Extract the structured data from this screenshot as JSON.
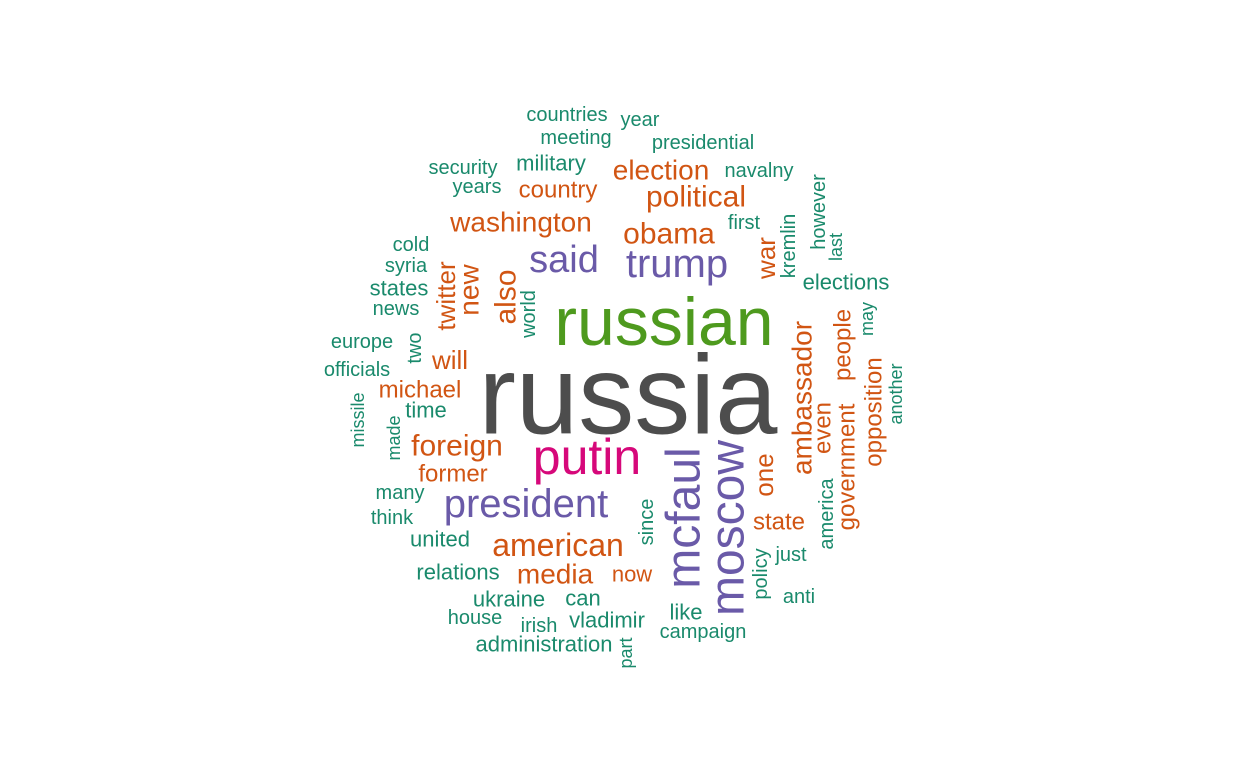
{
  "colors": {
    "gray": "#4d4d4d",
    "green": "#4e9a1e",
    "magenta": "#d6087a",
    "purple": "#6a5aa8",
    "orange": "#d15513",
    "teal": "#1a8a6c"
  },
  "words": [
    {
      "text": "russia",
      "color": "gray"
    },
    {
      "text": "russian",
      "color": "green"
    },
    {
      "text": "putin",
      "color": "magenta"
    },
    {
      "text": "president",
      "color": "purple"
    },
    {
      "text": "trump",
      "color": "purple"
    },
    {
      "text": "said",
      "color": "purple"
    },
    {
      "text": "mcfaul",
      "color": "purple"
    },
    {
      "text": "moscow",
      "color": "purple"
    },
    {
      "text": "american",
      "color": "orange"
    },
    {
      "text": "washington",
      "color": "orange"
    },
    {
      "text": "obama",
      "color": "orange"
    },
    {
      "text": "political",
      "color": "orange"
    },
    {
      "text": "election",
      "color": "orange"
    },
    {
      "text": "foreign",
      "color": "orange"
    },
    {
      "text": "media",
      "color": "orange"
    },
    {
      "text": "country",
      "color": "orange"
    },
    {
      "text": "will",
      "color": "orange"
    },
    {
      "text": "michael",
      "color": "orange"
    },
    {
      "text": "former",
      "color": "orange"
    },
    {
      "text": "state",
      "color": "orange"
    },
    {
      "text": "now",
      "color": "orange"
    },
    {
      "text": "new",
      "color": "orange"
    },
    {
      "text": "also",
      "color": "orange"
    },
    {
      "text": "twitter",
      "color": "orange"
    },
    {
      "text": "war",
      "color": "orange"
    },
    {
      "text": "ambassador",
      "color": "orange"
    },
    {
      "text": "one",
      "color": "orange"
    },
    {
      "text": "even",
      "color": "orange"
    },
    {
      "text": "people",
      "color": "orange"
    },
    {
      "text": "government",
      "color": "orange"
    },
    {
      "text": "opposition",
      "color": "orange"
    },
    {
      "text": "countries",
      "color": "teal"
    },
    {
      "text": "year",
      "color": "teal"
    },
    {
      "text": "meeting",
      "color": "teal"
    },
    {
      "text": "presidential",
      "color": "teal"
    },
    {
      "text": "security",
      "color": "teal"
    },
    {
      "text": "military",
      "color": "teal"
    },
    {
      "text": "navalny",
      "color": "teal"
    },
    {
      "text": "years",
      "color": "teal"
    },
    {
      "text": "first",
      "color": "teal"
    },
    {
      "text": "cold",
      "color": "teal"
    },
    {
      "text": "syria",
      "color": "teal"
    },
    {
      "text": "states",
      "color": "teal"
    },
    {
      "text": "news",
      "color": "teal"
    },
    {
      "text": "elections",
      "color": "teal"
    },
    {
      "text": "europe",
      "color": "teal"
    },
    {
      "text": "officials",
      "color": "teal"
    },
    {
      "text": "time",
      "color": "teal"
    },
    {
      "text": "many",
      "color": "teal"
    },
    {
      "text": "think",
      "color": "teal"
    },
    {
      "text": "united",
      "color": "teal"
    },
    {
      "text": "relations",
      "color": "teal"
    },
    {
      "text": "ukraine",
      "color": "teal"
    },
    {
      "text": "can",
      "color": "teal"
    },
    {
      "text": "house",
      "color": "teal"
    },
    {
      "text": "irish",
      "color": "teal"
    },
    {
      "text": "vladimir",
      "color": "teal"
    },
    {
      "text": "like",
      "color": "teal"
    },
    {
      "text": "campaign",
      "color": "teal"
    },
    {
      "text": "administration",
      "color": "teal"
    },
    {
      "text": "just",
      "color": "teal"
    },
    {
      "text": "anti",
      "color": "teal"
    },
    {
      "text": "world",
      "color": "teal"
    },
    {
      "text": "two",
      "color": "teal"
    },
    {
      "text": "missile",
      "color": "teal"
    },
    {
      "text": "made",
      "color": "teal"
    },
    {
      "text": "since",
      "color": "teal"
    },
    {
      "text": "part",
      "color": "teal"
    },
    {
      "text": "policy",
      "color": "teal"
    },
    {
      "text": "america",
      "color": "teal"
    },
    {
      "text": "kremlin",
      "color": "teal"
    },
    {
      "text": "however",
      "color": "teal"
    },
    {
      "text": "last",
      "color": "teal"
    },
    {
      "text": "may",
      "color": "teal"
    },
    {
      "text": "another",
      "color": "teal"
    }
  ]
}
